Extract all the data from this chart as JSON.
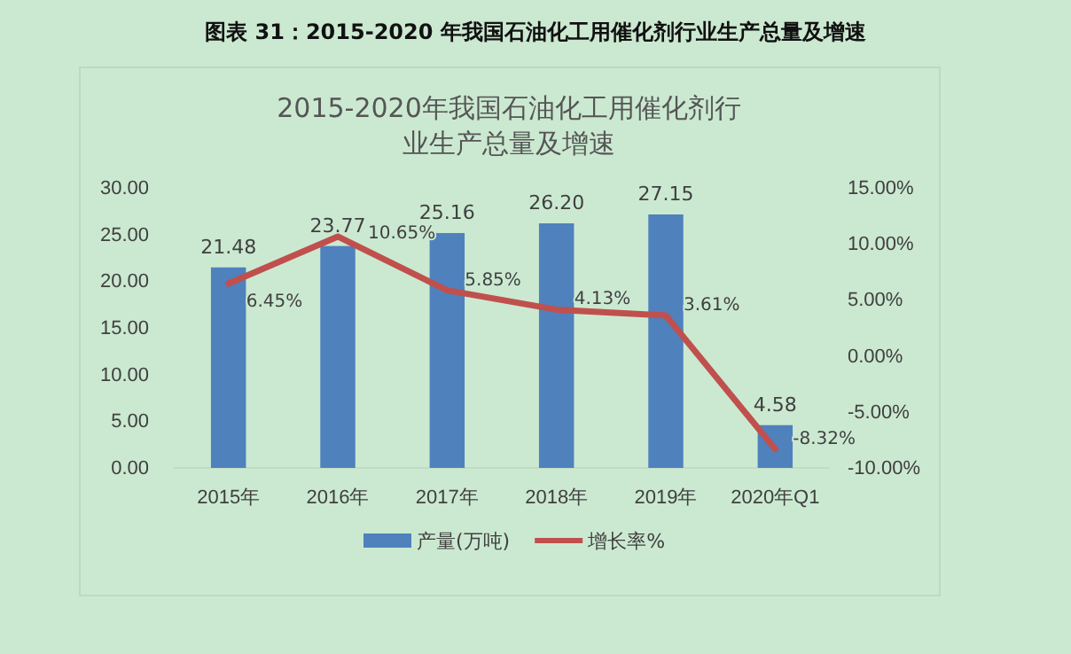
{
  "chart_data": {
    "type": "bar",
    "title": "图表 31：2015-2020 年我国石油化工用催化剂行业生产总量及增速",
    "subtitle": "2015-2020年我国石油化工用催化剂行业生产总量及增速",
    "categories": [
      "2015年",
      "2016年",
      "2017年",
      "2018年",
      "2019年",
      "2020年Q1"
    ],
    "series": [
      {
        "name": "产量(万吨)",
        "color": "#4f81bd",
        "values": [
          21.48,
          23.77,
          25.16,
          26.2,
          27.15,
          4.58
        ],
        "value_labels": [
          "21.48",
          "23.77",
          "25.16",
          "26.20",
          "27.15",
          "4.58"
        ]
      },
      {
        "name": "增长率%",
        "type": "line",
        "axis": "y2",
        "color": "#c0504d",
        "values": [
          6.45,
          10.65,
          5.85,
          4.13,
          3.61,
          -8.32
        ],
        "value_labels": [
          "6.45%",
          "10.65%",
          "5.85%",
          "4.13%",
          "3.61%",
          "-8.32%"
        ]
      }
    ],
    "ylim": [
      0,
      30
    ],
    "yticks": [
      {
        "value": 0,
        "label": "0.00"
      },
      {
        "value": 5,
        "label": "5.00"
      },
      {
        "value": 10,
        "label": "10.00"
      },
      {
        "value": 15,
        "label": "15.00"
      },
      {
        "value": 20,
        "label": "20.00"
      },
      {
        "value": 25,
        "label": "25.00"
      },
      {
        "value": 30,
        "label": "30.00"
      }
    ],
    "y2lim": [
      -10,
      15
    ],
    "y2ticks": [
      {
        "value": -10,
        "label": "-10.00%"
      },
      {
        "value": -5,
        "label": "-5.00%"
      },
      {
        "value": 0,
        "label": "0.00%"
      },
      {
        "value": 5,
        "label": "5.00%"
      },
      {
        "value": 10,
        "label": "10.00%"
      },
      {
        "value": 15,
        "label": "15.00%"
      }
    ],
    "legend": "bottom",
    "marker": "none",
    "line_style": "solid"
  }
}
